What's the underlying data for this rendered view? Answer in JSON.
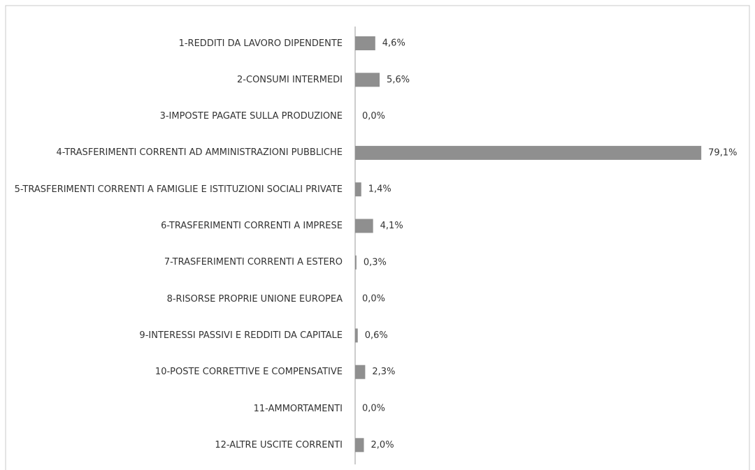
{
  "chart_data": {
    "type": "hbar",
    "categories": [
      "1-REDDITI DA LAVORO DIPENDENTE",
      "2-CONSUMI INTERMEDI",
      "3-IMPOSTE PAGATE SULLA PRODUZIONE",
      "4-TRASFERIMENTI CORRENTI AD AMMINISTRAZIONI PUBBLICHE",
      "5-TRASFERIMENTI CORRENTI A FAMIGLIE E ISTITUZIONI SOCIALI PRIVATE",
      "6-TRASFERIMENTI CORRENTI A IMPRESE",
      "7-TRASFERIMENTI CORRENTI A ESTERO",
      "8-RISORSE PROPRIE UNIONE EUROPEA",
      "9-INTERESSI PASSIVI E REDDITI DA CAPITALE",
      "10-POSTE CORRETTIVE E COMPENSATIVE",
      "11-AMMORTAMENTI",
      "12-ALTRE USCITE CORRENTI"
    ],
    "values": [
      4.6,
      5.6,
      0.0,
      79.1,
      1.4,
      4.1,
      0.3,
      0.0,
      0.6,
      2.3,
      0.0,
      2.0
    ],
    "value_labels": [
      "4,6%",
      "5,6%",
      "0,0%",
      "79,1%",
      "1,4%",
      "4,1%",
      "0,3%",
      "0,0%",
      "0,6%",
      "2,3%",
      "0,0%",
      "2,0%"
    ],
    "color": "#8f8f8f"
  }
}
